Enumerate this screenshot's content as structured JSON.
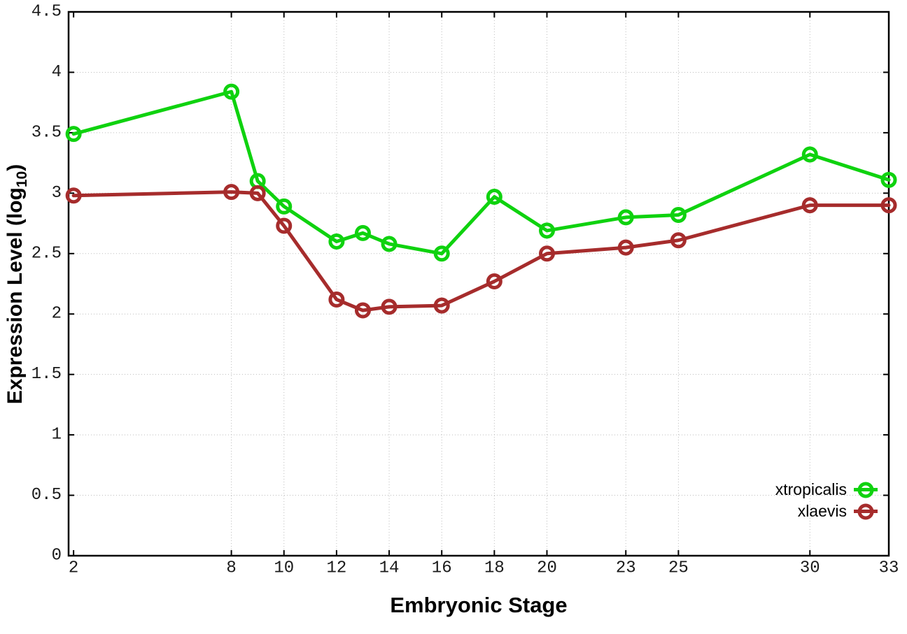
{
  "chart_data": {
    "type": "line",
    "title": "",
    "xlabel": "Embryonic Stage",
    "ylabel": "Expression Level (log10)",
    "ylabel_parts": {
      "main": "Expression Level (log",
      "sub": "10",
      "end": ")"
    },
    "xlim": [
      1.81,
      33
    ],
    "ylim": [
      0,
      4.5
    ],
    "grid": true,
    "legend_position": "bottom-right",
    "x_ticks": [
      2,
      8,
      10,
      12,
      14,
      16,
      18,
      20,
      23,
      25,
      30,
      33
    ],
    "x_tick_labels": [
      "2",
      "8",
      "10",
      "12",
      "14",
      "16",
      "18",
      "20",
      "23",
      "25",
      "30",
      "33"
    ],
    "y_ticks": [
      0,
      0.5,
      1,
      1.5,
      2,
      2.5,
      3,
      3.5,
      4,
      4.5
    ],
    "y_tick_labels": [
      "0",
      "0.5",
      "1",
      "1.5",
      "2",
      "2.5",
      "3",
      "3.5",
      "4",
      "4.5"
    ],
    "x_gridlines": [
      8,
      10,
      12,
      14,
      16,
      18,
      20,
      23,
      25,
      30
    ],
    "y_gridlines": [
      0.5,
      1,
      1.5,
      2,
      2.5,
      3,
      3.5,
      4
    ],
    "series": [
      {
        "name": "xtropicalis",
        "color": "#0fd20f",
        "marker": "open-circle",
        "x": [
          2,
          8,
          9,
          10,
          12,
          13,
          14,
          16,
          18,
          20,
          23,
          25,
          30,
          33
        ],
        "y": [
          3.49,
          3.84,
          3.1,
          2.89,
          2.6,
          2.67,
          2.58,
          2.5,
          2.97,
          2.69,
          2.8,
          2.82,
          3.32,
          3.11
        ]
      },
      {
        "name": "xlaevis",
        "color": "#a62c2c",
        "marker": "open-circle",
        "x": [
          2,
          8,
          9,
          10,
          12,
          13,
          14,
          16,
          18,
          20,
          23,
          25,
          30,
          33
        ],
        "y": [
          2.98,
          3.01,
          3.0,
          2.73,
          2.12,
          2.03,
          2.06,
          2.07,
          2.27,
          2.5,
          2.55,
          2.61,
          2.9,
          2.9
        ]
      }
    ]
  },
  "legend": {
    "items": [
      {
        "label": "xtropicalis",
        "color": "#0fd20f"
      },
      {
        "label": "xlaevis",
        "color": "#a62c2c"
      }
    ]
  },
  "colors": {
    "background": "#ffffff",
    "border": "#000000",
    "grid": "#bdbdbd",
    "tick_text": "#1a1a1a",
    "series_green": "#0fd20f",
    "series_red": "#a62c2c"
  }
}
